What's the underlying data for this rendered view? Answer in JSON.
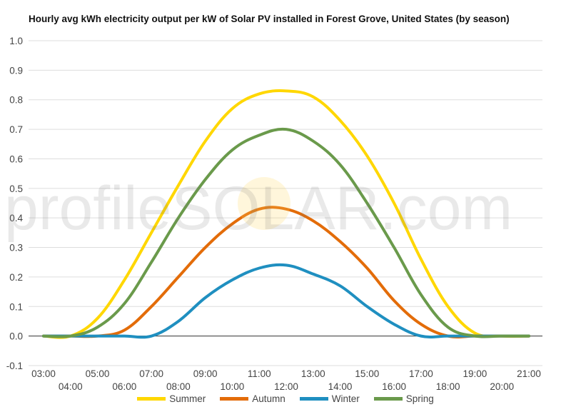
{
  "chart_data": {
    "type": "line",
    "title": "Hourly avg kWh electricity output per kW of Solar PV installed in Forest Grove, United States (by season)",
    "x": [
      "03:00",
      "04:00",
      "05:00",
      "06:00",
      "07:00",
      "08:00",
      "09:00",
      "10:00",
      "11:00",
      "12:00",
      "13:00",
      "14:00",
      "15:00",
      "16:00",
      "17:00",
      "18:00",
      "19:00",
      "20:00",
      "21:00"
    ],
    "x_tick_labels": [
      "03:00",
      "04:00",
      "05:00",
      "06:00",
      "07:00",
      "08:00",
      "09:00",
      "10:00",
      "11:00",
      "12:00",
      "13:00",
      "14:00",
      "15:00",
      "16:00",
      "17:00",
      "18:00",
      "19:00",
      "20:00",
      "21:00"
    ],
    "y_tick_labels": [
      "1.0",
      "0.9",
      "0.8",
      "0.7",
      "0.6",
      "0.5",
      "0.4",
      "0.3",
      "0.2",
      "0.1",
      "0.0",
      "-0.1"
    ],
    "ylim": [
      -0.1,
      1.0
    ],
    "grid": true,
    "legend_position": "bottom",
    "series": [
      {
        "name": "Summer",
        "color": "#FFD700",
        "values": [
          0.0,
          0.0,
          0.06,
          0.19,
          0.35,
          0.51,
          0.66,
          0.77,
          0.82,
          0.83,
          0.81,
          0.73,
          0.61,
          0.45,
          0.26,
          0.1,
          0.01,
          0.0,
          0.0
        ]
      },
      {
        "name": "Autumn",
        "color": "#E36C09",
        "values": [
          0.0,
          0.0,
          0.0,
          0.02,
          0.1,
          0.2,
          0.3,
          0.38,
          0.43,
          0.43,
          0.39,
          0.32,
          0.23,
          0.12,
          0.04,
          0.0,
          0.0,
          0.0,
          0.0
        ]
      },
      {
        "name": "Winter",
        "color": "#1F8FC0",
        "values": [
          0.0,
          0.0,
          0.0,
          0.0,
          0.0,
          0.05,
          0.13,
          0.19,
          0.23,
          0.24,
          0.21,
          0.17,
          0.1,
          0.04,
          0.0,
          0.0,
          0.0,
          0.0,
          0.0
        ]
      },
      {
        "name": "Spring",
        "color": "#6A9A4B",
        "values": [
          0.0,
          0.0,
          0.03,
          0.11,
          0.25,
          0.4,
          0.53,
          0.63,
          0.68,
          0.7,
          0.66,
          0.58,
          0.45,
          0.3,
          0.14,
          0.03,
          0.0,
          0.0,
          0.0
        ]
      }
    ]
  },
  "watermark": {
    "text": "profileSOLAR.com"
  }
}
